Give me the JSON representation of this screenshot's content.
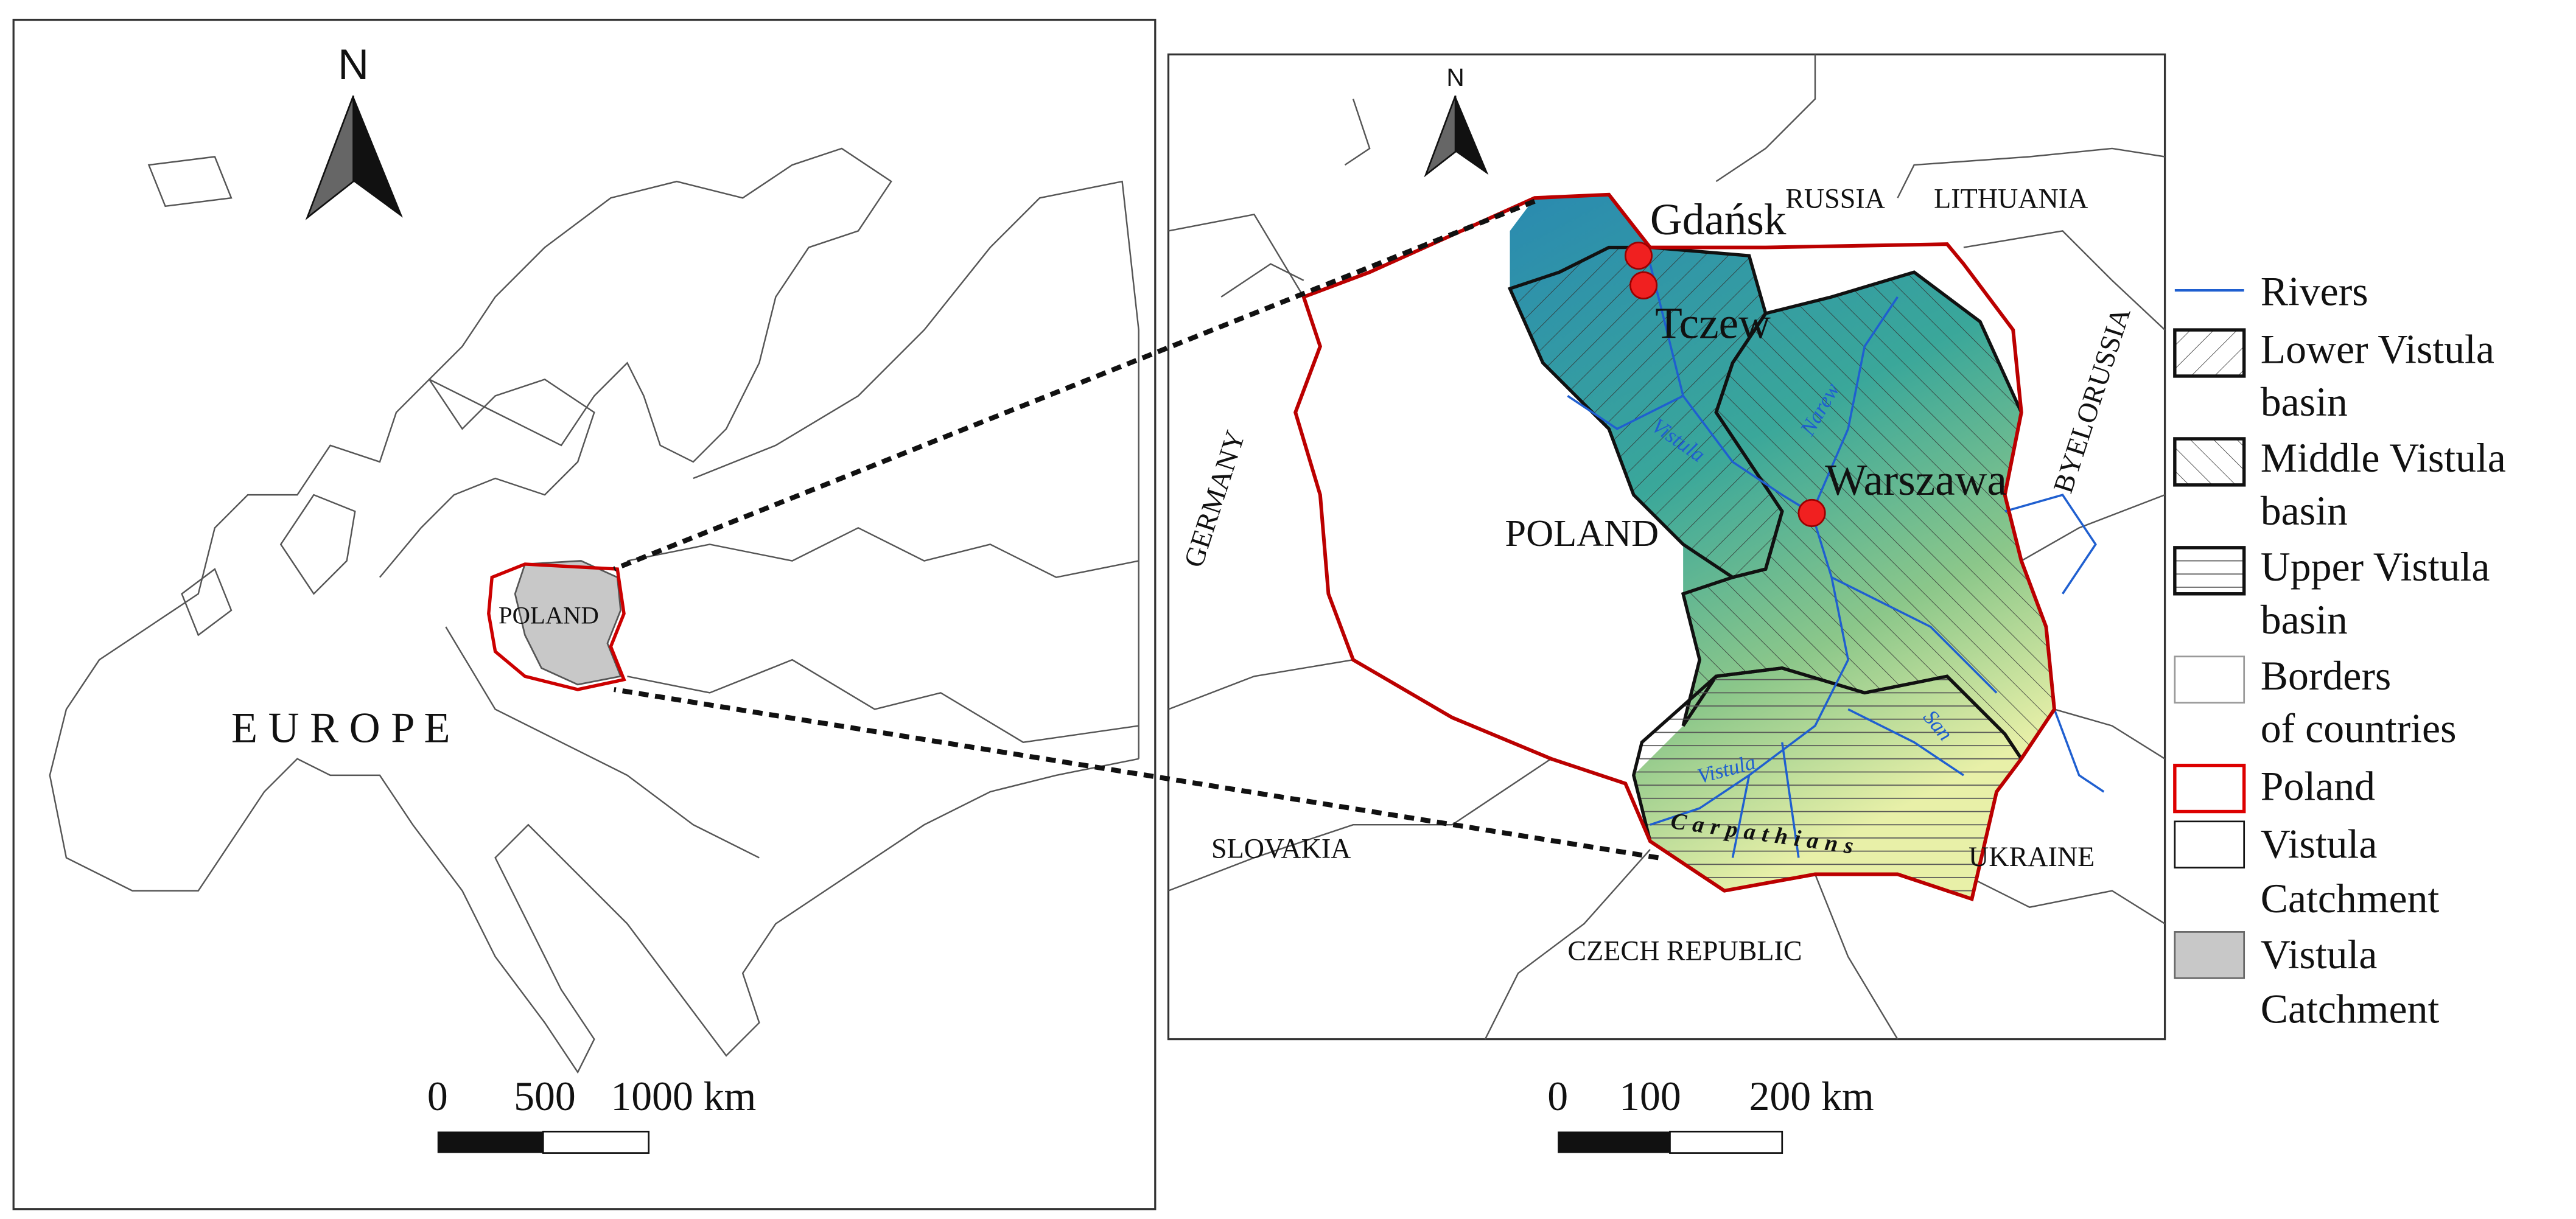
{
  "left_map": {
    "north": "N",
    "region_label": "E U R O P E",
    "country_label": "POLAND",
    "scale_bar": [
      "0",
      "500",
      "1000 km"
    ]
  },
  "right_map": {
    "north": "N",
    "countries": [
      "RUSSIA",
      "LITHUANIA",
      "BYELORUSSIA",
      "GERMANY",
      "POLAND",
      "SLOVAKIA",
      "UKRAINE",
      "CZECH REPUBLIC"
    ],
    "cities": [
      "Gdańsk",
      "Tczew",
      "Warszawa"
    ],
    "rivers": [
      "Vistula",
      "Narew",
      "Vistula",
      "San"
    ],
    "region": "Carpathians",
    "scale_bar": [
      "0",
      "100",
      "200 km"
    ]
  },
  "legend": {
    "items": [
      {
        "lines": [
          "Rivers"
        ]
      },
      {
        "lines": [
          "Lower Vistula",
          "basin"
        ]
      },
      {
        "lines": [
          "Middle Vistula",
          "basin"
        ]
      },
      {
        "lines": [
          "Upper Vistula",
          "basin"
        ]
      },
      {
        "lines": [
          "Borders",
          "of countries"
        ]
      },
      {
        "lines": [
          "Poland"
        ]
      },
      {
        "lines": [
          "Vistula",
          "Catchment"
        ]
      },
      {
        "lines": [
          "Vistula",
          "Catchment"
        ]
      }
    ]
  }
}
